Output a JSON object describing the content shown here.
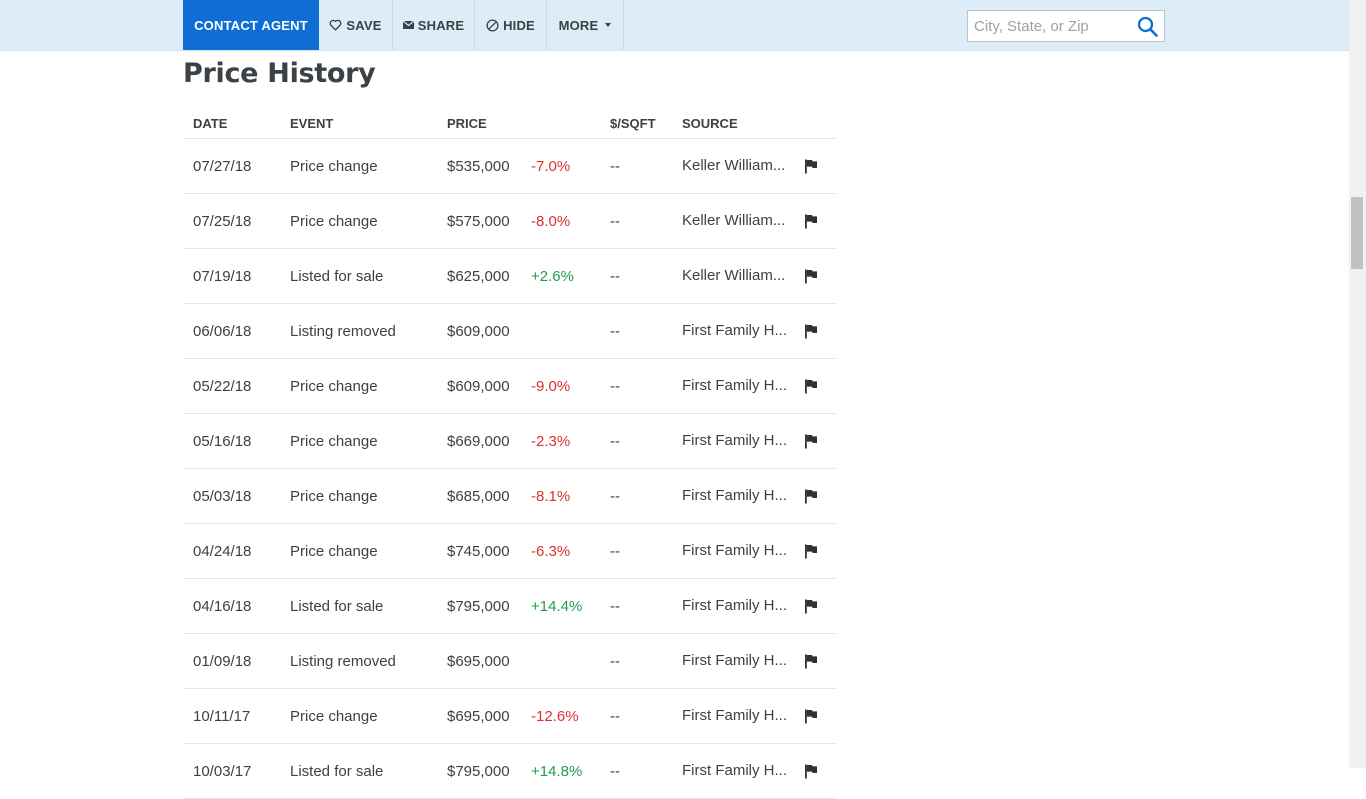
{
  "toolbar": {
    "contact_label": "CONTACT AGENT",
    "save_label": "SAVE",
    "share_label": "SHARE",
    "hide_label": "HIDE",
    "more_label": "MORE"
  },
  "search": {
    "placeholder": "City, State, or Zip"
  },
  "section": {
    "title": "Price History"
  },
  "table": {
    "headers": {
      "date": "DATE",
      "event": "EVENT",
      "price": "PRICE",
      "sqft": "$/SQFT",
      "source": "SOURCE"
    },
    "rows": [
      {
        "date": "07/27/18",
        "event": "Price change",
        "price": "$535,000",
        "change": "-7.0%",
        "sqft": "--",
        "source": "Keller William..."
      },
      {
        "date": "07/25/18",
        "event": "Price change",
        "price": "$575,000",
        "change": "-8.0%",
        "sqft": "--",
        "source": "Keller William..."
      },
      {
        "date": "07/19/18",
        "event": "Listed for sale",
        "price": "$625,000",
        "change": "+2.6%",
        "sqft": "--",
        "source": "Keller William..."
      },
      {
        "date": "06/06/18",
        "event": "Listing removed",
        "price": "$609,000",
        "change": "",
        "sqft": "--",
        "source": "First Family H..."
      },
      {
        "date": "05/22/18",
        "event": "Price change",
        "price": "$609,000",
        "change": "-9.0%",
        "sqft": "--",
        "source": "First Family H..."
      },
      {
        "date": "05/16/18",
        "event": "Price change",
        "price": "$669,000",
        "change": "-2.3%",
        "sqft": "--",
        "source": "First Family H..."
      },
      {
        "date": "05/03/18",
        "event": "Price change",
        "price": "$685,000",
        "change": "-8.1%",
        "sqft": "--",
        "source": "First Family H..."
      },
      {
        "date": "04/24/18",
        "event": "Price change",
        "price": "$745,000",
        "change": "-6.3%",
        "sqft": "--",
        "source": "First Family H..."
      },
      {
        "date": "04/16/18",
        "event": "Listed for sale",
        "price": "$795,000",
        "change": "+14.4%",
        "sqft": "--",
        "source": "First Family H..."
      },
      {
        "date": "01/09/18",
        "event": "Listing removed",
        "price": "$695,000",
        "change": "",
        "sqft": "--",
        "source": "First Family H..."
      },
      {
        "date": "10/11/17",
        "event": "Price change",
        "price": "$695,000",
        "change": "-12.6%",
        "sqft": "--",
        "source": "First Family H..."
      },
      {
        "date": "10/03/17",
        "event": "Listed for sale",
        "price": "$795,000",
        "change": "+14.8%",
        "sqft": "--",
        "source": "First Family H..."
      }
    ]
  },
  "colors": {
    "accent": "#0f6ed6",
    "toolbar_bg": "#dcedf7",
    "negative": "#dc3131",
    "positive": "#1f9e4f"
  },
  "icons": {
    "save": "heart-outline-icon",
    "share": "envelope-icon",
    "hide": "circle-slash-icon",
    "search": "magnifier-icon",
    "report": "flag-icon"
  }
}
